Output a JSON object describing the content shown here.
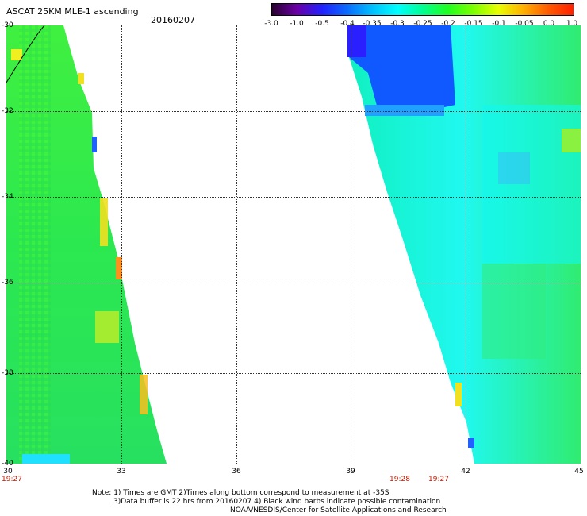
{
  "header": {
    "title": "ASCAT 25KM MLE-1 ascending",
    "date": "20160207"
  },
  "colorbar": {
    "ticks": [
      "-3.0",
      "-1.0",
      "-0.5",
      "-0.4",
      "-0.35",
      "-0.3",
      "-0.25",
      "-0.2",
      "-0.15",
      "-0.1",
      "-0.05",
      "0.0",
      "1.0"
    ],
    "colors": [
      "#2a0030",
      "#6a00a8",
      "#2222ff",
      "#0a6cff",
      "#00c0ff",
      "#00ffff",
      "#00ff90",
      "#20ff20",
      "#7cff00",
      "#e8ff00",
      "#ffb000",
      "#ff5a00",
      "#ff2000"
    ]
  },
  "axes": {
    "y_labels": [
      "-30",
      "-32",
      "-34",
      "-36",
      "-38",
      "-40"
    ],
    "x_labels": [
      "30",
      "33",
      "36",
      "39",
      "42",
      "45"
    ]
  },
  "times": [
    "19:27",
    "19:28",
    "19:27"
  ],
  "notes": [
    "Note: 1) Times are GMT 2)Times along bottom correspond to measurement at -35S",
    "3)Data buffer is 22 hrs from 20160207 4) Black wind barbs indicate possible contamination",
    "NOAA/NESDIS/Center for Satellite Applications and Research"
  ]
}
